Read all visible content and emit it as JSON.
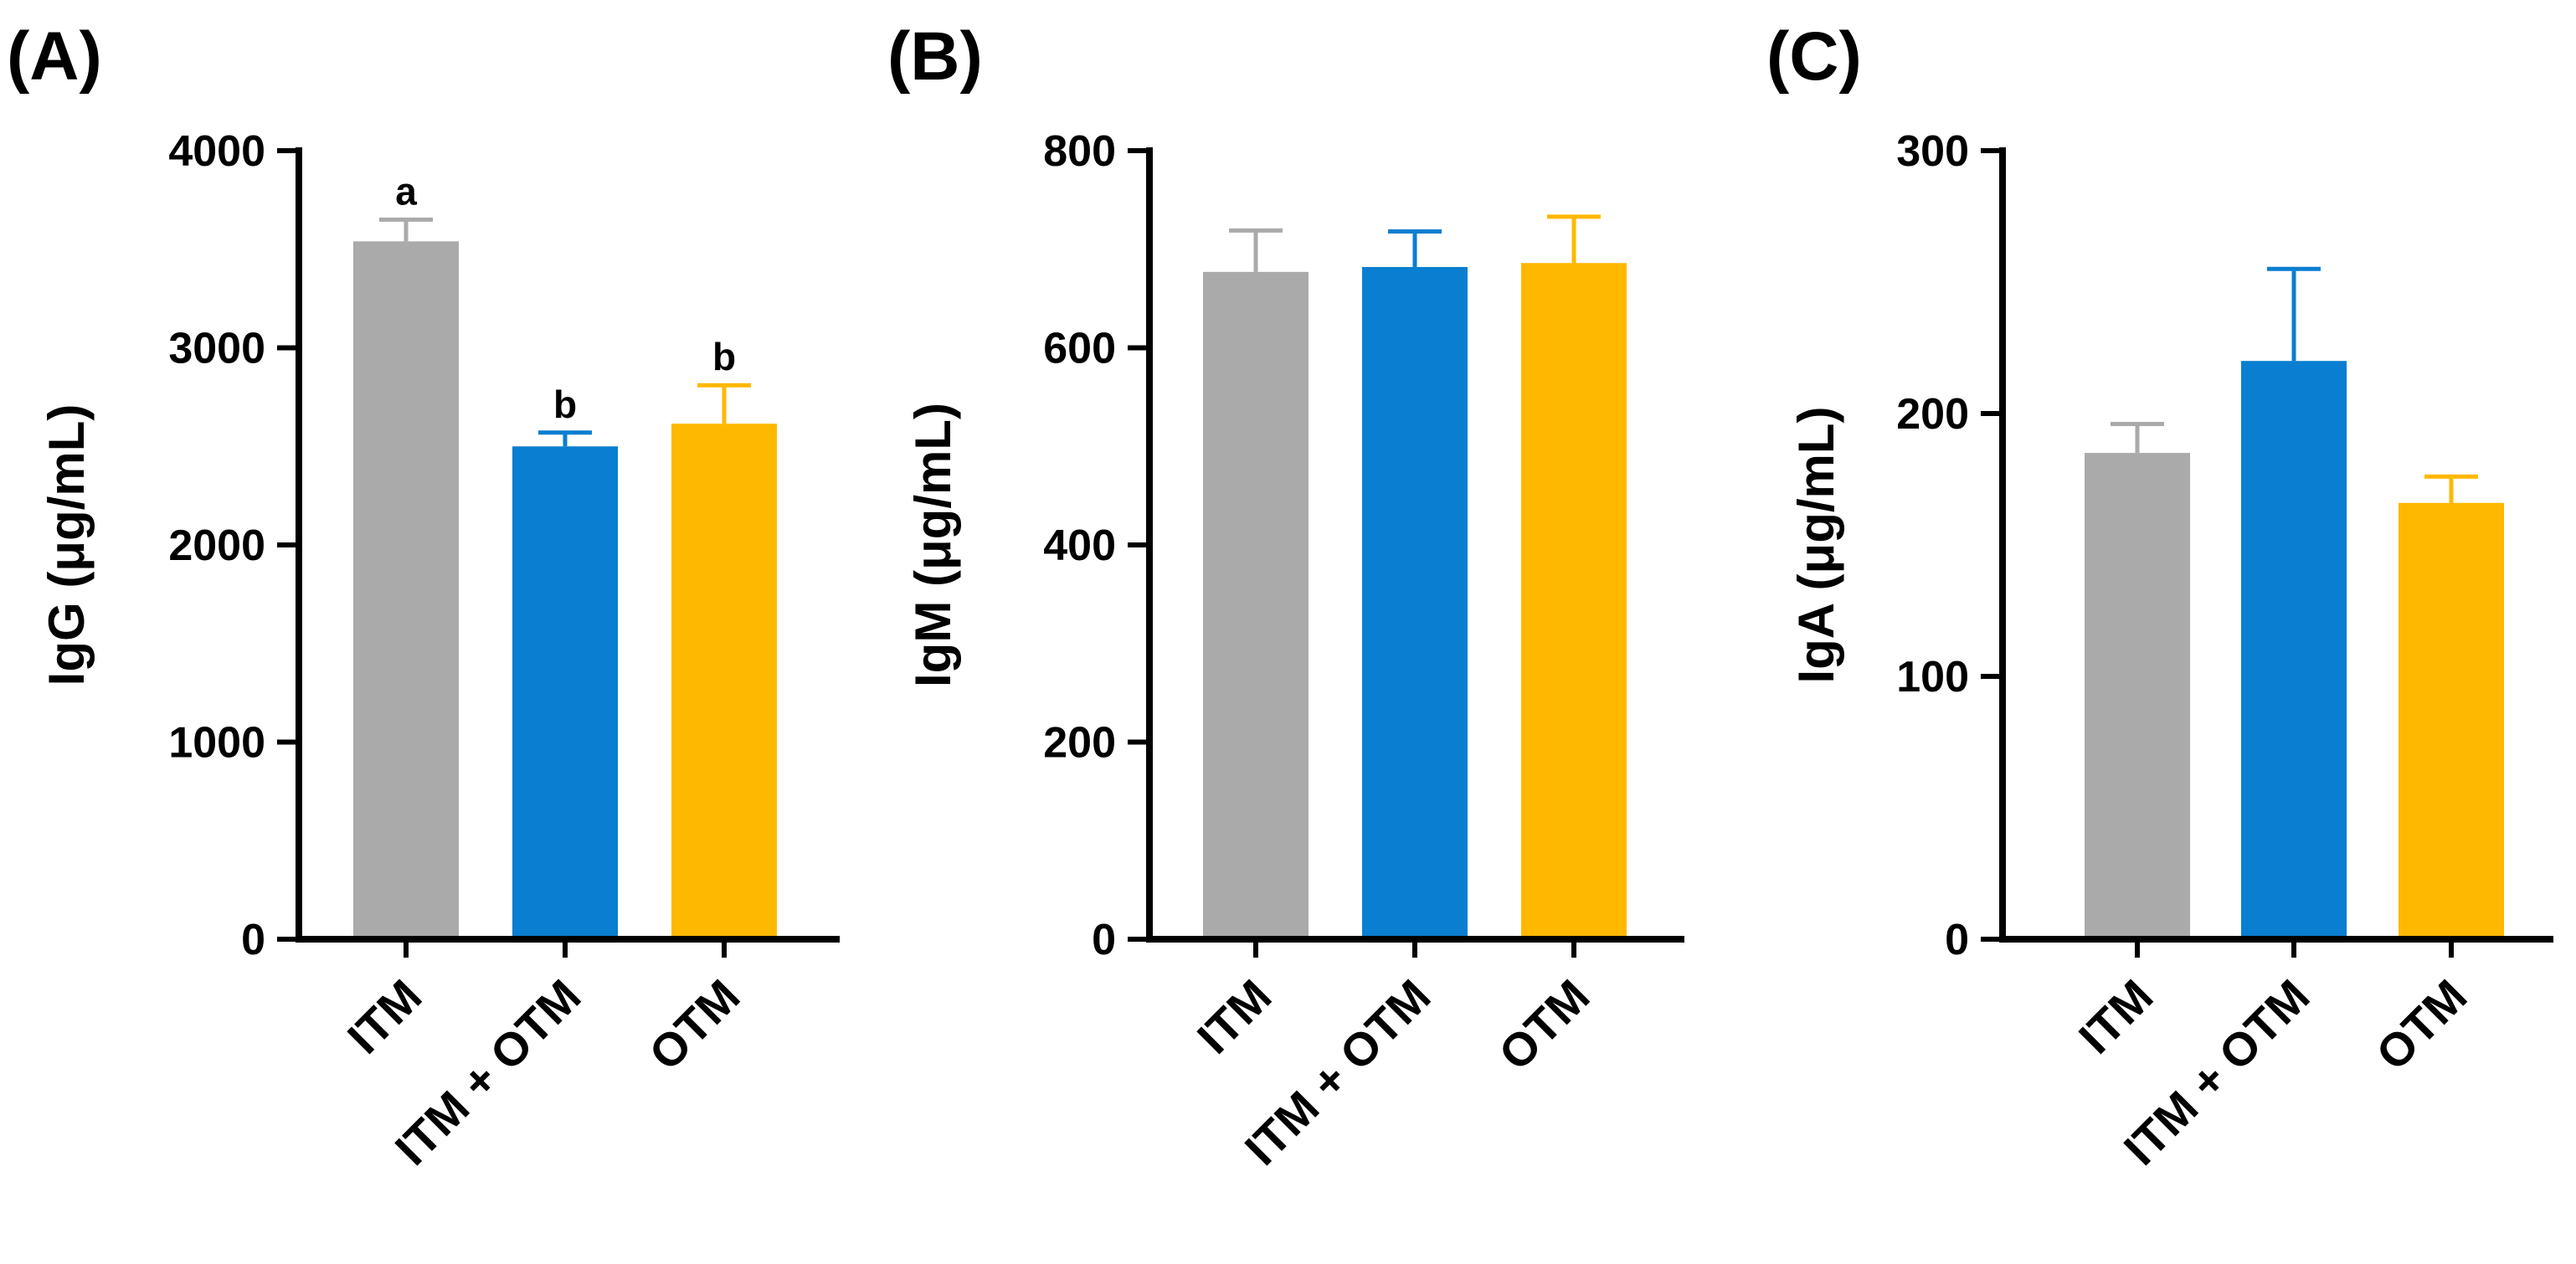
{
  "chart_data": [
    {
      "type": "bar",
      "panel_label": "(A)",
      "ylabel": "IgG (μg/mL)",
      "categories": [
        "ITM",
        "ITM + OTM",
        "OTM"
      ],
      "values": [
        3540,
        2500,
        2615
      ],
      "errors": [
        110,
        70,
        195
      ],
      "significance": [
        "a",
        "b",
        "b"
      ],
      "colors": [
        "#AAAAAA",
        "#0A7ED0",
        "#FFB800"
      ],
      "ylim": [
        0,
        4000
      ],
      "yticks": [
        0,
        1000,
        2000,
        3000,
        4000
      ],
      "ytick_labels": [
        "0",
        "1000",
        "2000",
        "3000",
        "4000"
      ]
    },
    {
      "type": "bar",
      "panel_label": "(B)",
      "ylabel": "IgM (μg/mL)",
      "categories": [
        "ITM",
        "ITM + OTM",
        "OTM"
      ],
      "values": [
        677,
        682,
        686
      ],
      "errors": [
        42,
        36,
        47
      ],
      "significance": [
        "",
        "",
        ""
      ],
      "colors": [
        "#AAAAAA",
        "#0A7ED0",
        "#FFB800"
      ],
      "ylim": [
        0,
        800
      ],
      "yticks": [
        0,
        200,
        400,
        600,
        800
      ],
      "ytick_labels": [
        "0",
        "200",
        "400",
        "600",
        "800"
      ]
    },
    {
      "type": "bar",
      "panel_label": "(C)",
      "ylabel": "IgA (μg/mL)",
      "categories": [
        "ITM",
        "ITM + OTM",
        "OTM"
      ],
      "values": [
        185,
        220,
        166
      ],
      "errors": [
        11,
        35,
        10
      ],
      "significance": [
        "",
        "",
        ""
      ],
      "colors": [
        "#AAAAAA",
        "#0A7ED0",
        "#FFB800"
      ],
      "ylim": [
        0,
        300
      ],
      "yticks": [
        0,
        100,
        200,
        300
      ],
      "ytick_labels": [
        "0",
        "100",
        "200",
        "300"
      ]
    }
  ]
}
